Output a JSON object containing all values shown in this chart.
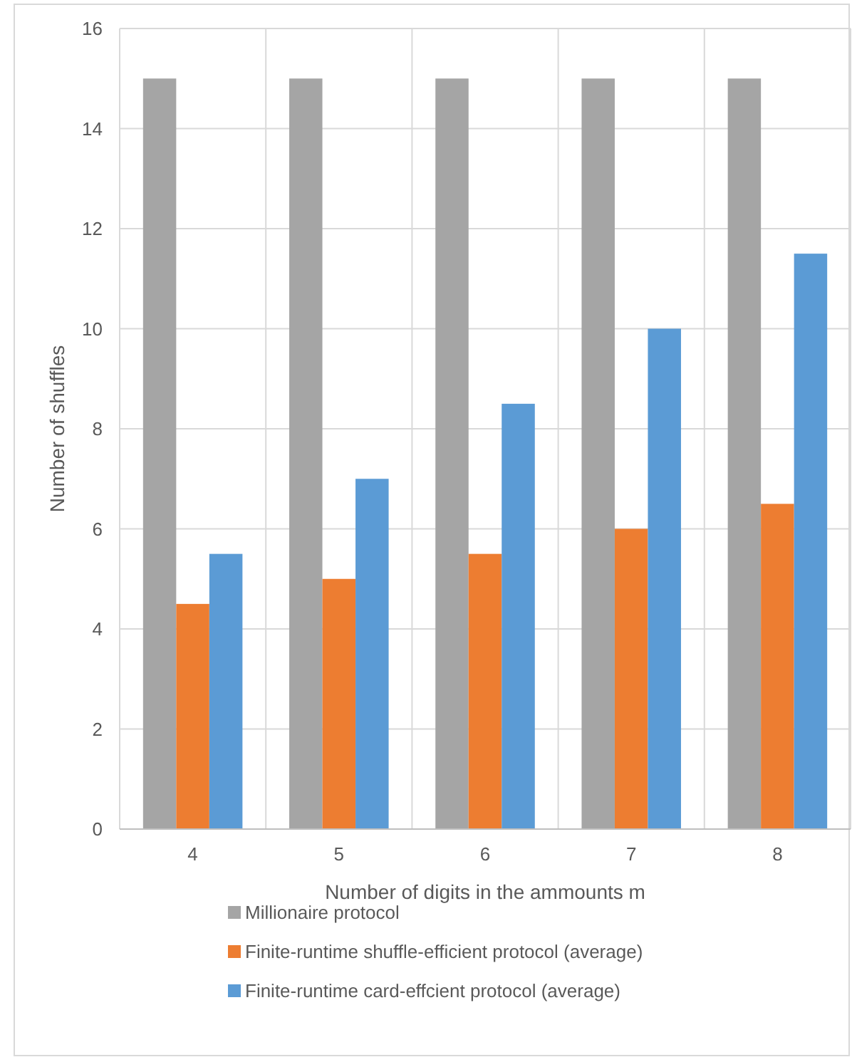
{
  "chart_data": {
    "type": "bar",
    "xlabel": "Number of digits in the ammounts m",
    "ylabel": "Number of shuffles",
    "categories": [
      "4",
      "5",
      "6",
      "7",
      "8"
    ],
    "series": [
      {
        "name": "Millionaire protocol",
        "color": "#a5a5a5",
        "values": [
          15,
          15,
          15,
          15,
          15
        ]
      },
      {
        "name": "Finite-runtime shuffle-efficient protocol (average)",
        "color": "#ed7d31",
        "values": [
          4.5,
          5,
          5.5,
          6,
          6.5
        ]
      },
      {
        "name": "Finite-runtime card-effcient protocol (average)",
        "color": "#5b9bd5",
        "values": [
          5.5,
          7,
          8.5,
          10,
          11.5
        ]
      }
    ],
    "ylim": [
      0,
      16
    ],
    "yticks": [
      0,
      2,
      4,
      6,
      8,
      10,
      12,
      14,
      16
    ],
    "grid": true,
    "legend": "bottom"
  }
}
